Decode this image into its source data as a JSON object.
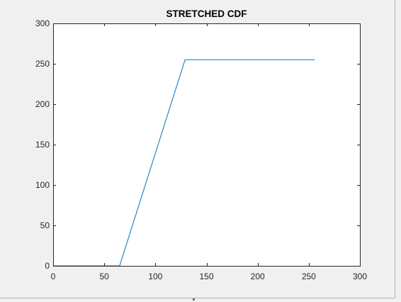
{
  "colors": {
    "background": "#f0f0f0",
    "axes_background": "#ffffff",
    "axes_line": "#262626",
    "series_line": "#0072bd"
  },
  "chart_data": {
    "type": "line",
    "title": "STRETCHED CDF",
    "xlabel": "",
    "ylabel": "",
    "xlim": [
      0,
      300
    ],
    "ylim": [
      0,
      300
    ],
    "xticks": [
      0,
      50,
      100,
      150,
      200,
      250,
      300
    ],
    "yticks": [
      0,
      50,
      100,
      150,
      200,
      250,
      300
    ],
    "xtick_labels": [
      "0",
      "50",
      "100",
      "150",
      "200",
      "250",
      "300"
    ],
    "ytick_labels": [
      "0",
      "50",
      "100",
      "150",
      "200",
      "250",
      "300"
    ],
    "grid": false,
    "legend": "none",
    "series": [
      {
        "color": "#0072bd",
        "x": [
          0,
          65,
          129,
          256
        ],
        "y": [
          0,
          0,
          255,
          255
        ]
      }
    ]
  }
}
